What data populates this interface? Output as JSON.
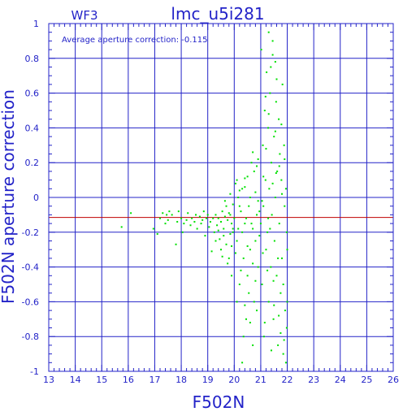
{
  "chart_data": {
    "type": "scatter",
    "title": "lmc_u5i281",
    "subtitle": "WF3",
    "annotation": "Average aperture correction: -0.115",
    "xlabel": "F502N",
    "ylabel": "F502N aperture correction",
    "xlim": [
      13,
      26
    ],
    "ylim": [
      -1,
      1
    ],
    "x_ticks": [
      "13",
      "14",
      "15",
      "16",
      "17",
      "18",
      "19",
      "20",
      "21",
      "22",
      "23",
      "24",
      "25",
      "26"
    ],
    "y_ticks": [
      "-1",
      "-0.8",
      "-0.6",
      "-0.4",
      "-0.2",
      "0",
      "0.2",
      "0.4",
      "0.6",
      "0.8",
      "1"
    ],
    "grid": true,
    "reference_line": {
      "y": -0.115,
      "color": "#c00000"
    },
    "colors": {
      "axes": "#2323c8",
      "points": "#00e000",
      "reference": "#c00000"
    },
    "series": [
      {
        "values": [
          [
            15.75,
            -0.17
          ],
          [
            16.1,
            -0.09
          ],
          [
            16.95,
            -0.18
          ],
          [
            17.1,
            -0.21
          ],
          [
            17.2,
            -0.12
          ],
          [
            17.3,
            -0.09
          ],
          [
            17.4,
            -0.15
          ],
          [
            17.45,
            -0.1
          ],
          [
            17.5,
            -0.13
          ],
          [
            17.55,
            -0.08
          ],
          [
            17.65,
            -0.1
          ],
          [
            17.8,
            -0.27
          ],
          [
            17.85,
            -0.14
          ],
          [
            17.9,
            -0.08
          ],
          [
            18.0,
            -0.12
          ],
          [
            18.05,
            -0.2
          ],
          [
            18.1,
            -0.15
          ],
          [
            18.2,
            -0.13
          ],
          [
            18.25,
            -0.09
          ],
          [
            18.35,
            -0.16
          ],
          [
            18.4,
            -0.12
          ],
          [
            18.5,
            -0.14
          ],
          [
            18.55,
            -0.1
          ],
          [
            18.6,
            -0.18
          ],
          [
            18.7,
            -0.11
          ],
          [
            18.75,
            -0.15
          ],
          [
            18.8,
            -0.13
          ],
          [
            18.85,
            -0.08
          ],
          [
            18.9,
            -0.22
          ],
          [
            18.95,
            -0.12
          ],
          [
            19.0,
            -0.1
          ],
          [
            19.05,
            -0.17
          ],
          [
            19.1,
            -0.14
          ],
          [
            19.15,
            -0.31
          ],
          [
            19.2,
            -0.12
          ],
          [
            19.25,
            -0.2
          ],
          [
            19.3,
            -0.1
          ],
          [
            19.35,
            -0.16
          ],
          [
            19.4,
            -0.12
          ],
          [
            19.45,
            -0.24
          ],
          [
            19.5,
            -0.14
          ],
          [
            19.55,
            -0.08
          ],
          [
            19.6,
            -0.18
          ],
          [
            19.65,
            -0.11
          ],
          [
            19.7,
            -0.27
          ],
          [
            19.75,
            -0.13
          ],
          [
            19.8,
            -0.09
          ],
          [
            19.85,
            -0.21
          ],
          [
            19.9,
            -0.15
          ],
          [
            19.95,
            -0.04
          ],
          [
            19.5,
            -0.3
          ],
          [
            19.6,
            -0.22
          ],
          [
            19.8,
            -0.35
          ],
          [
            19.9,
            -0.28
          ],
          [
            19.7,
            -0.05
          ],
          [
            19.85,
            -0.1
          ],
          [
            19.4,
            -0.19
          ],
          [
            19.3,
            -0.25
          ],
          [
            19.55,
            -0.34
          ],
          [
            19.95,
            -0.18
          ],
          [
            19.75,
            -0.38
          ],
          [
            19.65,
            -0.02
          ],
          [
            19.85,
            0.02
          ],
          [
            19.9,
            -0.45
          ],
          [
            19.95,
            -0.2
          ],
          [
            20.0,
            -0.12
          ],
          [
            20.05,
            0.08
          ],
          [
            20.1,
            -0.25
          ],
          [
            20.15,
            0.0
          ],
          [
            20.2,
            -0.5
          ],
          [
            20.25,
            -0.08
          ],
          [
            20.3,
            0.05
          ],
          [
            20.35,
            -0.35
          ],
          [
            20.4,
            -0.15
          ],
          [
            20.45,
            -0.7
          ],
          [
            20.5,
            0.12
          ],
          [
            20.55,
            -0.05
          ],
          [
            20.6,
            -0.3
          ],
          [
            20.65,
            0.2
          ],
          [
            20.7,
            -0.18
          ],
          [
            20.75,
            -0.6
          ],
          [
            20.8,
            0.03
          ],
          [
            20.85,
            -0.1
          ],
          [
            20.9,
            -0.4
          ],
          [
            20.95,
            -0.22
          ],
          [
            20.05,
            -0.32
          ],
          [
            20.1,
            0.1
          ],
          [
            20.15,
            -0.18
          ],
          [
            20.2,
            -0.05
          ],
          [
            20.25,
            -0.42
          ],
          [
            20.3,
            -0.2
          ],
          [
            20.35,
            -0.8
          ],
          [
            20.4,
            0.06
          ],
          [
            20.45,
            -0.12
          ],
          [
            20.5,
            -0.28
          ],
          [
            20.55,
            -0.55
          ],
          [
            20.6,
            0.0
          ],
          [
            20.65,
            -0.15
          ],
          [
            20.7,
            -0.38
          ],
          [
            20.75,
            0.15
          ],
          [
            20.8,
            -0.25
          ],
          [
            20.85,
            -0.65
          ],
          [
            20.9,
            0.22
          ],
          [
            20.95,
            -0.08
          ],
          [
            20.1,
            -0.6
          ],
          [
            20.3,
            -0.95
          ],
          [
            20.5,
            -0.45
          ],
          [
            20.7,
            -0.85
          ],
          [
            20.6,
            -0.72
          ],
          [
            20.4,
            -0.62
          ],
          [
            20.8,
            -0.48
          ],
          [
            20.2,
            0.04
          ],
          [
            20.4,
            0.11
          ],
          [
            20.7,
            0.26
          ],
          [
            20.85,
            0.18
          ],
          [
            20.9,
            -0.02
          ],
          [
            21.0,
            -0.15
          ],
          [
            21.02,
            0.85
          ],
          [
            21.05,
            -0.5
          ],
          [
            21.08,
            0.3
          ],
          [
            21.1,
            -0.05
          ],
          [
            21.12,
            -0.8
          ],
          [
            21.15,
            0.5
          ],
          [
            21.18,
            0.1
          ],
          [
            21.2,
            -0.3
          ],
          [
            21.22,
            0.72
          ],
          [
            21.25,
            -0.2
          ],
          [
            21.28,
            0.4
          ],
          [
            21.3,
            -0.6
          ],
          [
            21.32,
            0.05
          ],
          [
            21.35,
            0.6
          ],
          [
            21.38,
            -0.4
          ],
          [
            21.4,
            0.2
          ],
          [
            21.42,
            -0.1
          ],
          [
            21.45,
            0.82
          ],
          [
            21.48,
            -0.7
          ],
          [
            21.5,
            0.35
          ],
          [
            21.52,
            -0.25
          ],
          [
            21.55,
            0.0
          ],
          [
            21.58,
            0.55
          ],
          [
            21.6,
            -0.45
          ],
          [
            21.62,
            0.15
          ],
          [
            21.65,
            -0.85
          ],
          [
            21.68,
            0.45
          ],
          [
            21.7,
            -0.15
          ],
          [
            21.72,
            0.25
          ],
          [
            21.75,
            -0.55
          ],
          [
            21.78,
            0.1
          ],
          [
            21.8,
            -0.35
          ],
          [
            21.82,
            0.65
          ],
          [
            21.85,
            -0.9
          ],
          [
            21.88,
            0.3
          ],
          [
            21.9,
            -0.05
          ],
          [
            21.92,
            -0.65
          ],
          [
            21.95,
            0.05
          ],
          [
            21.98,
            -0.75
          ],
          [
            22.0,
            -0.3
          ],
          [
            21.05,
            -0.02
          ],
          [
            21.1,
            0.12
          ],
          [
            21.15,
            -0.72
          ],
          [
            21.2,
            0.28
          ],
          [
            21.25,
            -0.42
          ],
          [
            21.3,
            0.48
          ],
          [
            21.35,
            -0.18
          ],
          [
            21.4,
            -0.88
          ],
          [
            21.45,
            0.08
          ],
          [
            21.5,
            -0.62
          ],
          [
            21.55,
            0.38
          ],
          [
            21.6,
            0.68
          ],
          [
            21.65,
            -0.35
          ],
          [
            21.7,
            0.18
          ],
          [
            21.75,
            -0.78
          ],
          [
            21.8,
            0.02
          ],
          [
            21.85,
            -0.5
          ],
          [
            21.9,
            0.22
          ],
          [
            21.95,
            -0.95
          ],
          [
            22.0,
            -0.6
          ],
          [
            21.08,
            -0.32
          ],
          [
            21.18,
            0.58
          ],
          [
            21.28,
            -0.12
          ],
          [
            21.38,
            0.75
          ],
          [
            21.48,
            -0.48
          ],
          [
            21.58,
            0.14
          ],
          [
            21.68,
            -0.68
          ],
          [
            21.78,
            0.42
          ],
          [
            21.88,
            -0.82
          ],
          [
            21.98,
            -0.2
          ],
          [
            21.3,
            0.95
          ],
          [
            21.45,
            0.9
          ],
          [
            21.55,
            0.78
          ]
        ]
      }
    ]
  }
}
